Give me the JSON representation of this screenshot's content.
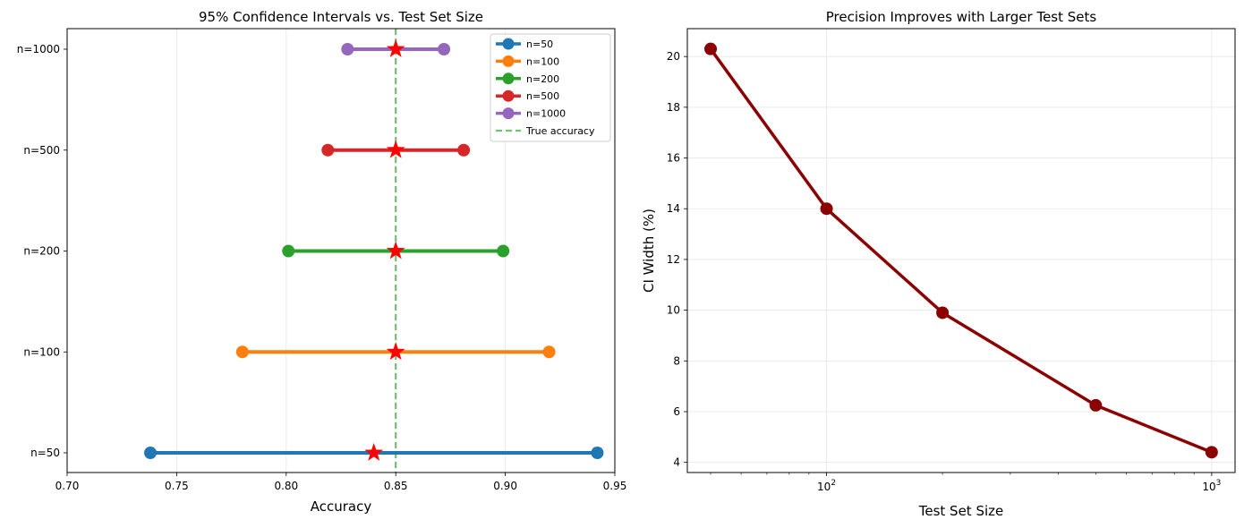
{
  "chart_data": [
    {
      "type": "interval",
      "title": "95% Confidence Intervals vs. Test Set Size",
      "xlabel": "Accuracy",
      "ylabel": "",
      "xlim": [
        0.7,
        0.95
      ],
      "xticks": [
        "0.70",
        "0.75",
        "0.80",
        "0.85",
        "0.90",
        "0.95"
      ],
      "xtick_values": [
        0.7,
        0.75,
        0.8,
        0.85,
        0.9,
        0.95
      ],
      "grid": true,
      "legend_position": "top-right",
      "true_accuracy": 0.85,
      "true_accuracy_label": "True accuracy",
      "true_accuracy_color": "#2ca02c",
      "point_marker_color": "#ff0000",
      "series": [
        {
          "name": "n=50",
          "label": "n=50",
          "color": "#1f77b4",
          "low": 0.738,
          "high": 0.942,
          "point": 0.84
        },
        {
          "name": "n=100",
          "label": "n=100",
          "color": "#ff7f0e",
          "low": 0.78,
          "high": 0.92,
          "point": 0.85
        },
        {
          "name": "n=200",
          "label": "n=200",
          "color": "#2ca02c",
          "low": 0.801,
          "high": 0.899,
          "point": 0.85
        },
        {
          "name": "n=500",
          "label": "n=500",
          "color": "#d62728",
          "low": 0.819,
          "high": 0.881,
          "point": 0.85
        },
        {
          "name": "n=1000",
          "label": "n=1000",
          "color": "#9467bd",
          "low": 0.828,
          "high": 0.872,
          "point": 0.85
        }
      ]
    },
    {
      "type": "line",
      "title": "Precision Improves with Larger Test Sets",
      "xlabel": "Test Set Size",
      "ylabel": "CI Width (%)",
      "xscale": "log",
      "xlim": [
        43.5,
        1150
      ],
      "ylim": [
        3.6,
        21.1
      ],
      "yticks": [
        4,
        6,
        8,
        10,
        12,
        14,
        16,
        18,
        20
      ],
      "xtick_major": [
        {
          "value": 100,
          "base": "10",
          "exp": "2"
        },
        {
          "value": 1000,
          "base": "10",
          "exp": "3"
        }
      ],
      "grid": true,
      "color": "#8b0000",
      "x": [
        50,
        100,
        200,
        500,
        1000
      ],
      "y": [
        20.3,
        14.0,
        9.9,
        6.25,
        4.4
      ]
    }
  ]
}
